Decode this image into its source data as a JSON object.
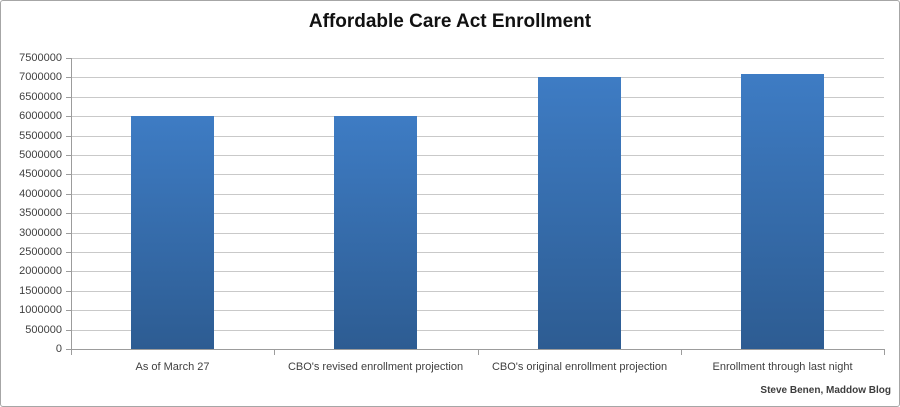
{
  "chart_data": {
    "type": "bar",
    "title": "Affordable Care Act Enrollment",
    "categories": [
      "As of March 27",
      "CBO's revised enrollment projection",
      "CBO's original enrollment projection",
      "Enrollment through last night"
    ],
    "values": [
      6000000,
      6000000,
      7000000,
      7100000
    ],
    "xlabel": "",
    "ylabel": "",
    "ylim": [
      0,
      7500000
    ],
    "ytick_step": 500000,
    "grid": true,
    "legend": false,
    "bar_gradient_top": "#3e7cc4",
    "bar_gradient_bottom": "#2d5c92"
  },
  "footer": {
    "credit": "Steve Benen, Maddow Blog"
  },
  "colors": {
    "gridline": "#c9c9c9",
    "axis": "#9c9c9c",
    "tick_label": "#3f3f3f",
    "title": "#111111",
    "background": "#ffffff",
    "frame_border": "#a6a6a6"
  }
}
